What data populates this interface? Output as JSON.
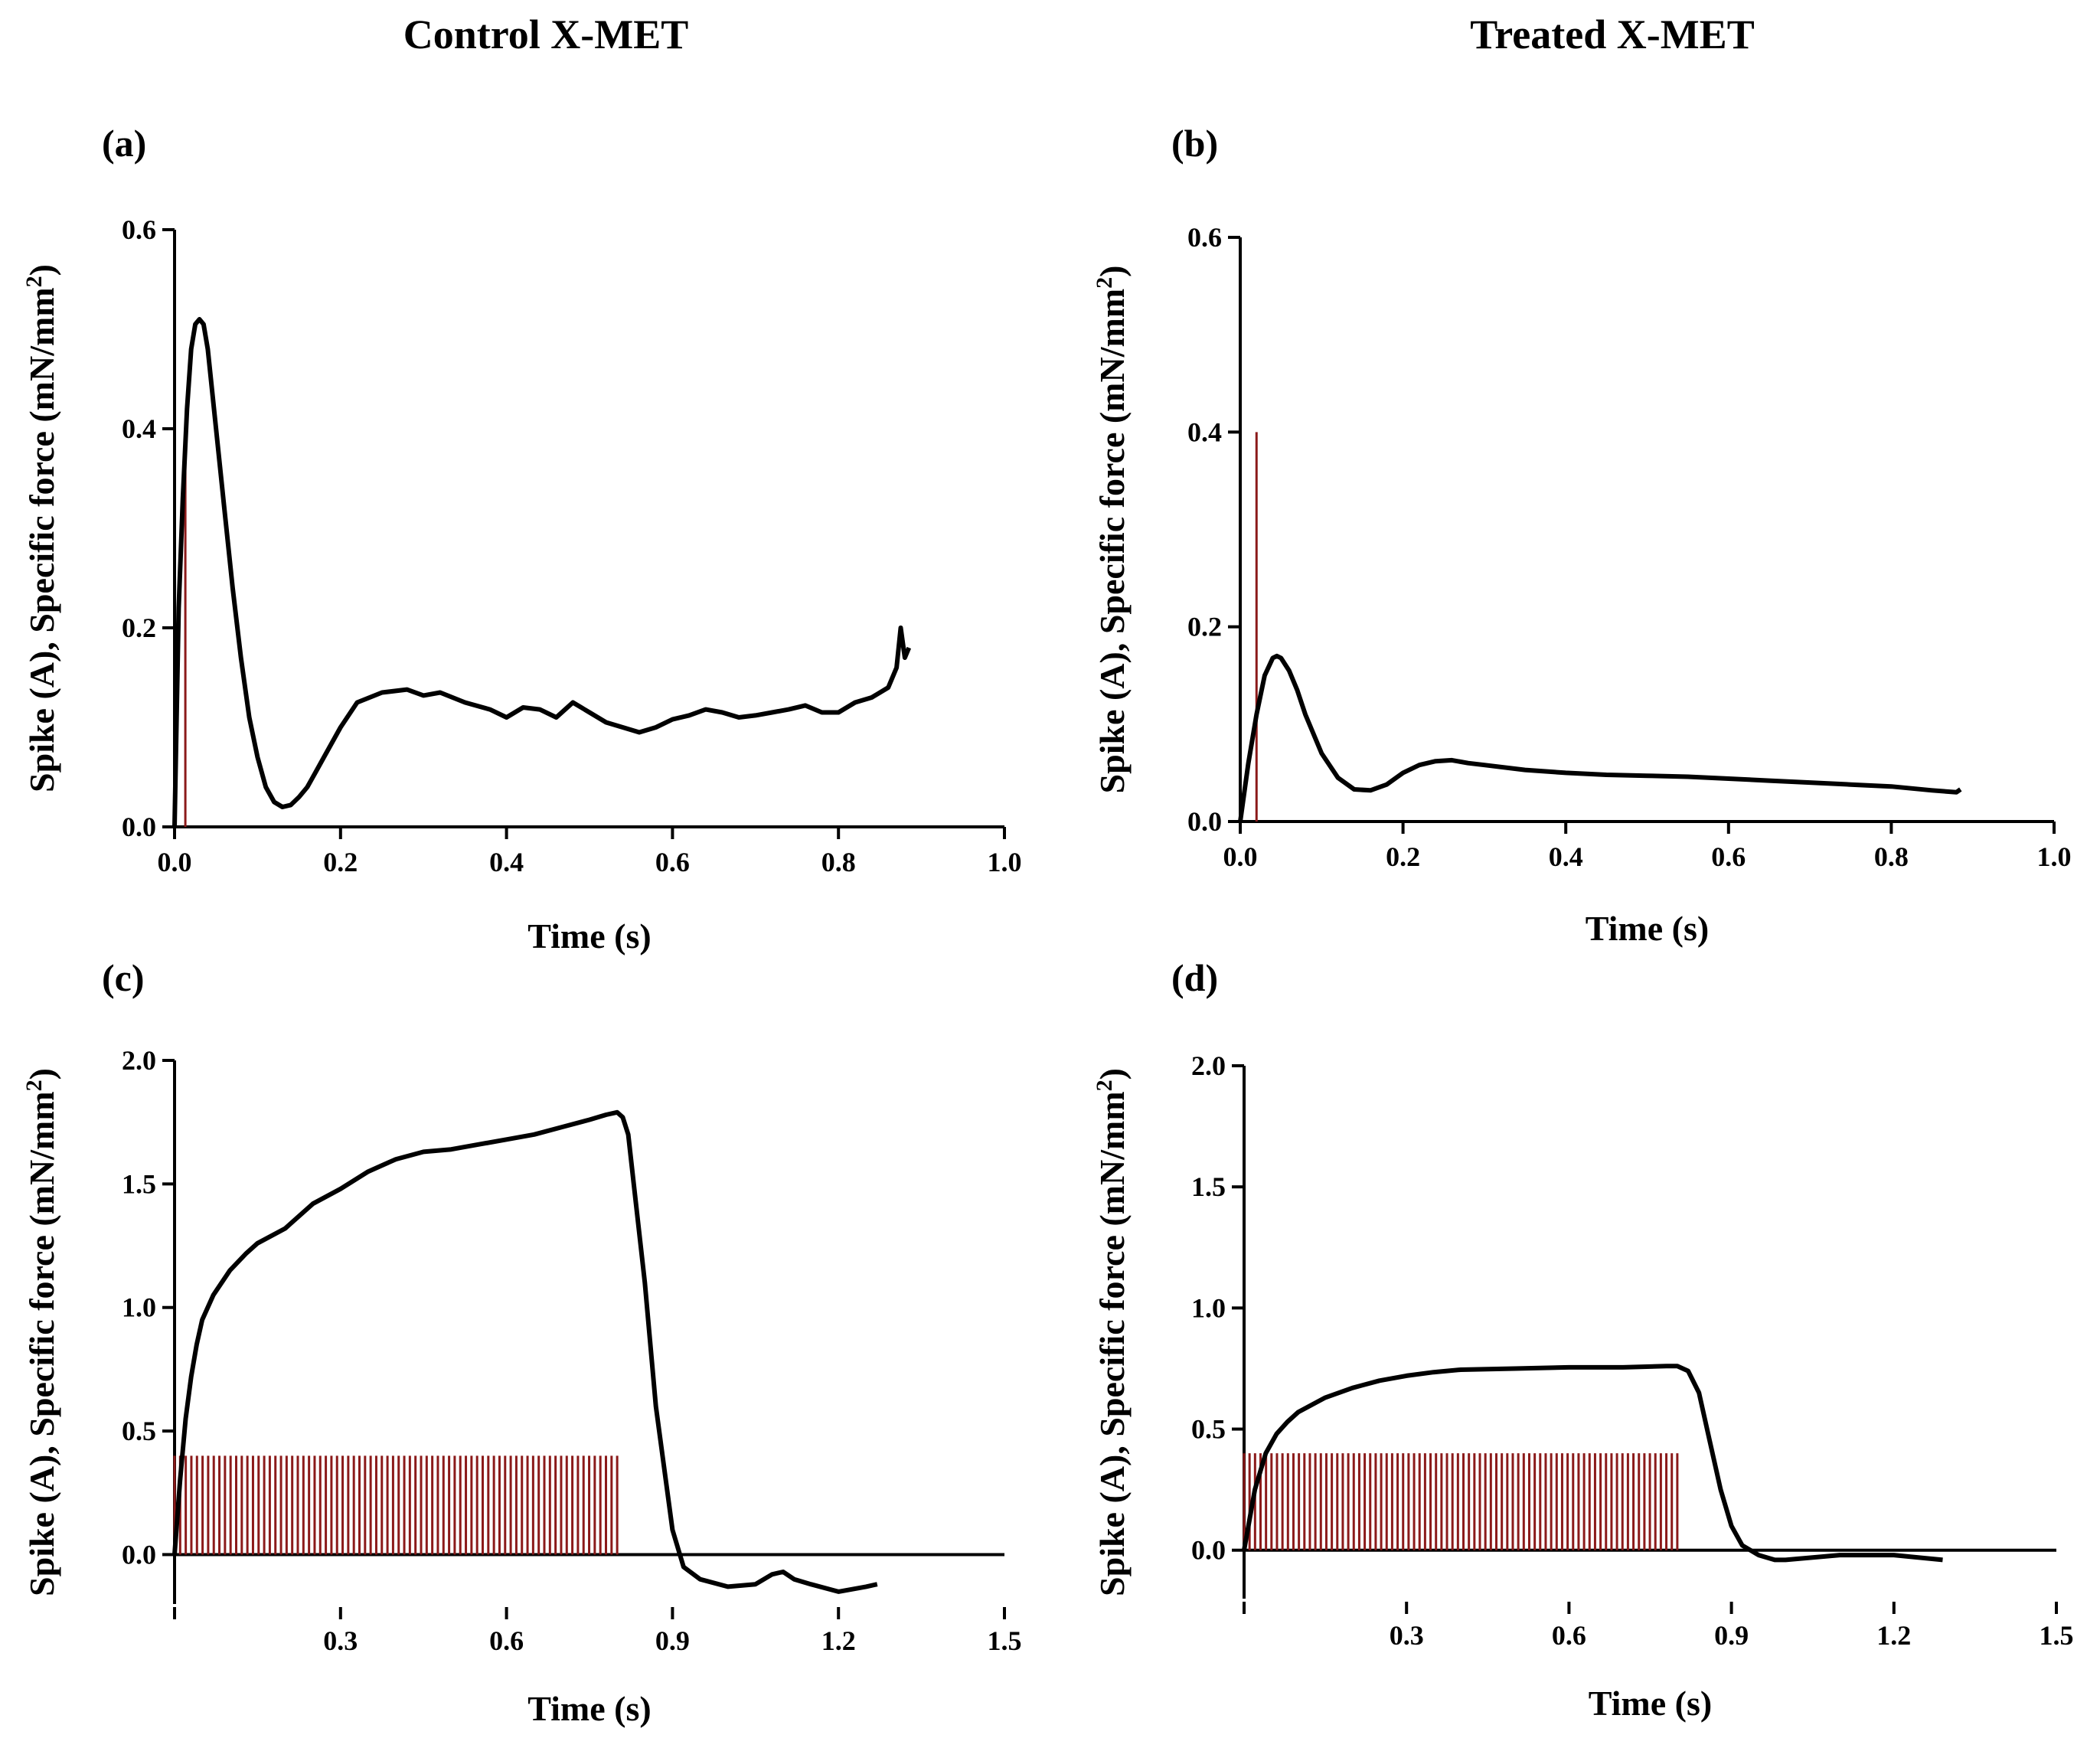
{
  "column_titles": [
    "Control X-MET",
    "Treated X-MET"
  ],
  "chart_data": [
    {
      "panel": "(a)",
      "type": "line",
      "xlabel": "Time (s)",
      "ylabel_main": "Spike (A), Specific force (mN/mm",
      "ylabel_sup": "2",
      "ylabel_end": ")",
      "xlim": [
        0,
        1.0
      ],
      "ylim": [
        0,
        0.6
      ],
      "xticks": [
        0.0,
        0.2,
        0.4,
        0.6,
        0.8,
        1.0
      ],
      "xtick_labels": [
        "0.0",
        "0.2",
        "0.4",
        "0.6",
        "0.8",
        "1.0"
      ],
      "yticks": [
        0.0,
        0.2,
        0.4,
        0.6
      ],
      "ytick_labels": [
        "0.0",
        "0.2",
        "0.4",
        "0.6"
      ],
      "line_color": "#000000",
      "spike_color": "#8b1a1a",
      "spike_height": 0.4,
      "spikes": [
        0.013
      ],
      "force": {
        "x": [
          0,
          0.005,
          0.01,
          0.015,
          0.02,
          0.025,
          0.03,
          0.035,
          0.04,
          0.05,
          0.06,
          0.07,
          0.08,
          0.09,
          0.1,
          0.11,
          0.12,
          0.13,
          0.14,
          0.15,
          0.16,
          0.17,
          0.18,
          0.2,
          0.22,
          0.25,
          0.28,
          0.3,
          0.32,
          0.35,
          0.38,
          0.4,
          0.42,
          0.44,
          0.46,
          0.48,
          0.5,
          0.52,
          0.54,
          0.56,
          0.58,
          0.6,
          0.62,
          0.64,
          0.66,
          0.68,
          0.7,
          0.72,
          0.74,
          0.76,
          0.78,
          0.8,
          0.82,
          0.84,
          0.86,
          0.87,
          0.875,
          0.88,
          0.885
        ],
        "y": [
          0,
          0.22,
          0.33,
          0.42,
          0.48,
          0.505,
          0.51,
          0.505,
          0.48,
          0.4,
          0.32,
          0.24,
          0.17,
          0.11,
          0.07,
          0.04,
          0.025,
          0.02,
          0.022,
          0.03,
          0.04,
          0.055,
          0.07,
          0.1,
          0.125,
          0.135,
          0.138,
          0.132,
          0.135,
          0.125,
          0.118,
          0.11,
          0.12,
          0.118,
          0.11,
          0.125,
          0.115,
          0.105,
          0.1,
          0.095,
          0.1,
          0.108,
          0.112,
          0.118,
          0.115,
          0.11,
          0.112,
          0.115,
          0.118,
          0.122,
          0.115,
          0.115,
          0.125,
          0.13,
          0.14,
          0.16,
          0.2,
          0.17,
          0.18
        ]
      }
    },
    {
      "panel": "(b)",
      "type": "line",
      "xlabel": "Time (s)",
      "ylabel_main": "Spike (A), Specific force (mN/mm",
      "ylabel_sup": "2",
      "ylabel_end": ")",
      "xlim": [
        0,
        1.0
      ],
      "ylim": [
        0,
        0.6
      ],
      "xticks": [
        0.0,
        0.2,
        0.4,
        0.6,
        0.8,
        1.0
      ],
      "xtick_labels": [
        "0.0",
        "0.2",
        "0.4",
        "0.6",
        "0.8",
        "1.0"
      ],
      "yticks": [
        0.0,
        0.2,
        0.4,
        0.6
      ],
      "ytick_labels": [
        "0.0",
        "0.2",
        "0.4",
        "0.6"
      ],
      "line_color": "#000000",
      "spike_color": "#8b1a1a",
      "spike_height": 0.4,
      "spikes": [
        0.02
      ],
      "force": {
        "x": [
          0,
          0.01,
          0.02,
          0.03,
          0.04,
          0.045,
          0.05,
          0.06,
          0.07,
          0.08,
          0.1,
          0.12,
          0.14,
          0.16,
          0.18,
          0.2,
          0.22,
          0.24,
          0.26,
          0.28,
          0.3,
          0.35,
          0.4,
          0.45,
          0.5,
          0.55,
          0.6,
          0.65,
          0.7,
          0.75,
          0.8,
          0.85,
          0.88,
          0.885
        ],
        "y": [
          0,
          0.06,
          0.11,
          0.15,
          0.168,
          0.17,
          0.168,
          0.155,
          0.135,
          0.11,
          0.07,
          0.045,
          0.033,
          0.032,
          0.038,
          0.05,
          0.058,
          0.062,
          0.063,
          0.06,
          0.058,
          0.053,
          0.05,
          0.048,
          0.047,
          0.046,
          0.044,
          0.042,
          0.04,
          0.038,
          0.036,
          0.032,
          0.03,
          0.033
        ]
      }
    },
    {
      "panel": "(c)",
      "type": "line",
      "xlabel": "Time (s)",
      "ylabel_main": "Spike (A), Specific force (mN/mm",
      "ylabel_sup": "2",
      "ylabel_end": ")",
      "xlim": [
        0,
        1.5
      ],
      "ylim": [
        -0.2,
        2.0
      ],
      "xticks": [
        0.3,
        0.6,
        0.9,
        1.2,
        1.5
      ],
      "xtick_labels": [
        "0.3",
        "0.6",
        "0.9",
        "1.2",
        "1.5"
      ],
      "yticks": [
        0.0,
        0.5,
        1.0,
        1.5,
        2.0
      ],
      "ytick_labels": [
        "0.0",
        "0.5",
        "1.0",
        "1.5",
        "2.0"
      ],
      "line_color": "#000000",
      "spike_color": "#8b1a1a",
      "spike_height": 0.4,
      "spike_train": {
        "start": 0.0,
        "end": 0.8,
        "count": 80
      },
      "force": {
        "x": [
          0,
          0.01,
          0.02,
          0.03,
          0.04,
          0.05,
          0.07,
          0.1,
          0.13,
          0.15,
          0.2,
          0.25,
          0.3,
          0.35,
          0.4,
          0.45,
          0.5,
          0.55,
          0.6,
          0.65,
          0.7,
          0.75,
          0.78,
          0.8,
          0.81,
          0.82,
          0.83,
          0.85,
          0.87,
          0.9,
          0.92,
          0.95,
          1.0,
          1.05,
          1.08,
          1.1,
          1.12,
          1.15,
          1.2,
          1.25,
          1.27
        ],
        "y": [
          0,
          0.3,
          0.55,
          0.72,
          0.85,
          0.95,
          1.05,
          1.15,
          1.22,
          1.26,
          1.32,
          1.42,
          1.48,
          1.55,
          1.6,
          1.63,
          1.64,
          1.66,
          1.68,
          1.7,
          1.73,
          1.76,
          1.78,
          1.79,
          1.77,
          1.7,
          1.5,
          1.1,
          0.6,
          0.1,
          -0.05,
          -0.1,
          -0.13,
          -0.12,
          -0.08,
          -0.07,
          -0.1,
          -0.12,
          -0.15,
          -0.13,
          -0.12
        ]
      }
    },
    {
      "panel": "(d)",
      "type": "line",
      "xlabel": "Time (s)",
      "ylabel_main": "Spike (A), Specific force (mN/mm",
      "ylabel_sup": "2",
      "ylabel_end": ")",
      "xlim": [
        0,
        1.5
      ],
      "ylim": [
        -0.2,
        2.0
      ],
      "xticks": [
        0.3,
        0.6,
        0.9,
        1.2,
        1.5
      ],
      "xtick_labels": [
        "0.3",
        "0.6",
        "0.9",
        "1.2",
        "1.5"
      ],
      "yticks": [
        0.0,
        0.5,
        1.0,
        1.5,
        2.0
      ],
      "ytick_labels": [
        "0.0",
        "0.5",
        "1.0",
        "1.5",
        "2.0"
      ],
      "line_color": "#000000",
      "spike_color": "#8b1a1a",
      "spike_height": 0.4,
      "spike_train": {
        "start": 0.0,
        "end": 0.8,
        "count": 80
      },
      "force": {
        "x": [
          0,
          0.02,
          0.04,
          0.06,
          0.08,
          0.1,
          0.15,
          0.2,
          0.25,
          0.3,
          0.35,
          0.4,
          0.5,
          0.6,
          0.7,
          0.78,
          0.8,
          0.82,
          0.84,
          0.86,
          0.88,
          0.9,
          0.92,
          0.95,
          0.98,
          1.0,
          1.05,
          1.1,
          1.2,
          1.29
        ],
        "y": [
          0,
          0.25,
          0.4,
          0.48,
          0.53,
          0.57,
          0.63,
          0.67,
          0.7,
          0.72,
          0.735,
          0.745,
          0.75,
          0.755,
          0.755,
          0.76,
          0.76,
          0.74,
          0.65,
          0.45,
          0.25,
          0.1,
          0.02,
          -0.02,
          -0.04,
          -0.04,
          -0.03,
          -0.02,
          -0.02,
          -0.04
        ]
      }
    }
  ]
}
